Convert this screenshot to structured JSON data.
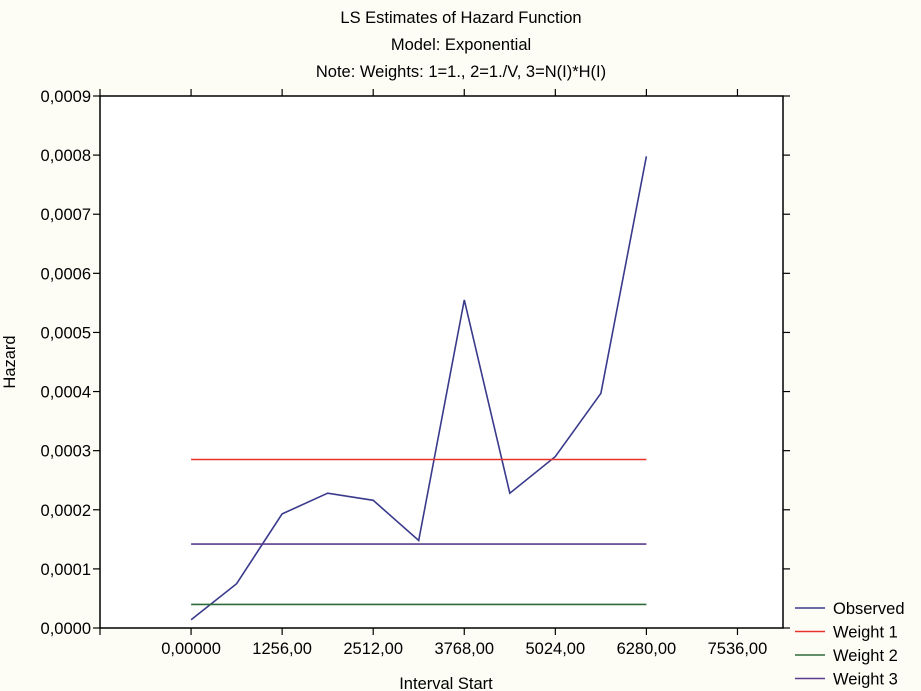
{
  "chart_data": {
    "type": "line",
    "title": [
      "LS Estimates of Hazard Function",
      "Model: Exponential",
      "Note: Weights: 1=1., 2=1./V, 3=N(I)*H(I)"
    ],
    "xlabel": "Interval Start",
    "ylabel": "Hazard",
    "xlim": [
      -1256,
      8164
    ],
    "ylim": [
      0,
      0.0009
    ],
    "x_ticks": [
      0,
      1256,
      2512,
      3768,
      5024,
      6280,
      7536
    ],
    "x_tick_labels": [
      "0,00000",
      "1256,00",
      "2512,00",
      "3768,00",
      "5024,00",
      "6280,00",
      "7536,00"
    ],
    "y_ticks": [
      0,
      0.0001,
      0.0002,
      0.0003,
      0.0004,
      0.0005,
      0.0006,
      0.0007,
      0.0008,
      0.0009
    ],
    "y_tick_labels": [
      "0,0000",
      "0,0001",
      "0,0002",
      "0,0003",
      "0,0004",
      "0,0005",
      "0,0006",
      "0,0007",
      "0,0008",
      "0,0009"
    ],
    "grid": false,
    "legend_position": "bottom-right",
    "series": [
      {
        "name": "Observed",
        "color": "#3a3a8c",
        "x": [
          0,
          628,
          1256,
          1884,
          2512,
          3140,
          3768,
          4396,
          5024,
          5652,
          6280
        ],
        "y": [
          1.4e-05,
          7.5e-05,
          0.000193,
          0.000228,
          0.000216,
          0.000148,
          0.000555,
          0.000228,
          0.00029,
          0.000397,
          0.000798
        ]
      },
      {
        "name": "Weight 1",
        "color": "#e8322a",
        "x": [
          0,
          6280
        ],
        "y": [
          0.000285,
          0.000285
        ]
      },
      {
        "name": "Weight 2",
        "color": "#2e6b3a",
        "x": [
          0,
          6280
        ],
        "y": [
          4e-05,
          4e-05
        ]
      },
      {
        "name": "Weight 3",
        "color": "#5a3c8c",
        "x": [
          0,
          6280
        ],
        "y": [
          0.000142,
          0.000142
        ]
      }
    ]
  }
}
